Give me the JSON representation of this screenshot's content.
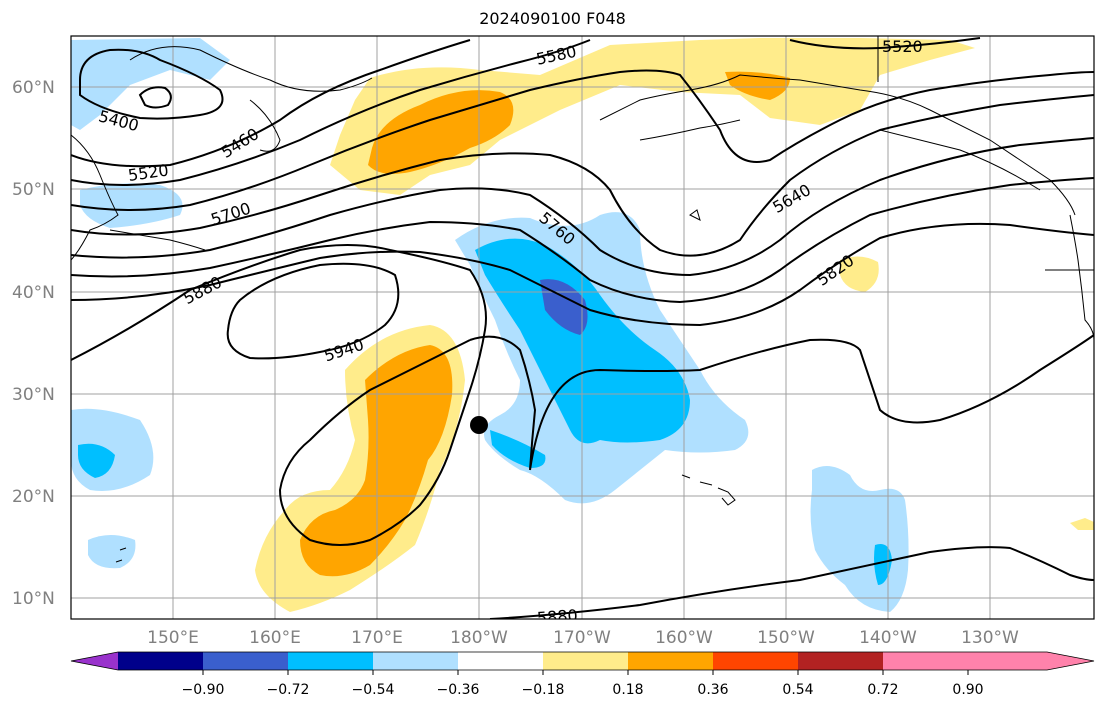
{
  "title": "2024090100 F048",
  "lat_labels": [
    "60°N",
    "50°N",
    "40°N",
    "30°N",
    "20°N",
    "10°N"
  ],
  "lon_labels": [
    "150°E",
    "160°E",
    "170°E",
    "180°W",
    "170°W",
    "160°W",
    "150°W",
    "140°W",
    "130°W"
  ],
  "contour_labels": [
    "5400",
    "5460",
    "5520",
    "5580",
    "5520",
    "5640",
    "5700",
    "5760",
    "5820",
    "5880",
    "5940",
    "5880"
  ],
  "colorbar": {
    "ticks": [
      "−0.90",
      "−0.72",
      "−0.54",
      "−0.36",
      "−0.18",
      "0.18",
      "0.36",
      "0.54",
      "0.72",
      "0.90"
    ],
    "colors": [
      "#9932cc",
      "#00008b",
      "#3a5fcd",
      "#00bfff",
      "#b0e0ff",
      "#ffffff",
      "#ffec8b",
      "#ffa500",
      "#ff4500",
      "#b22222",
      "#ff82ab"
    ]
  },
  "marker": {
    "label": "",
    "lon": 180,
    "lat": 27
  }
}
